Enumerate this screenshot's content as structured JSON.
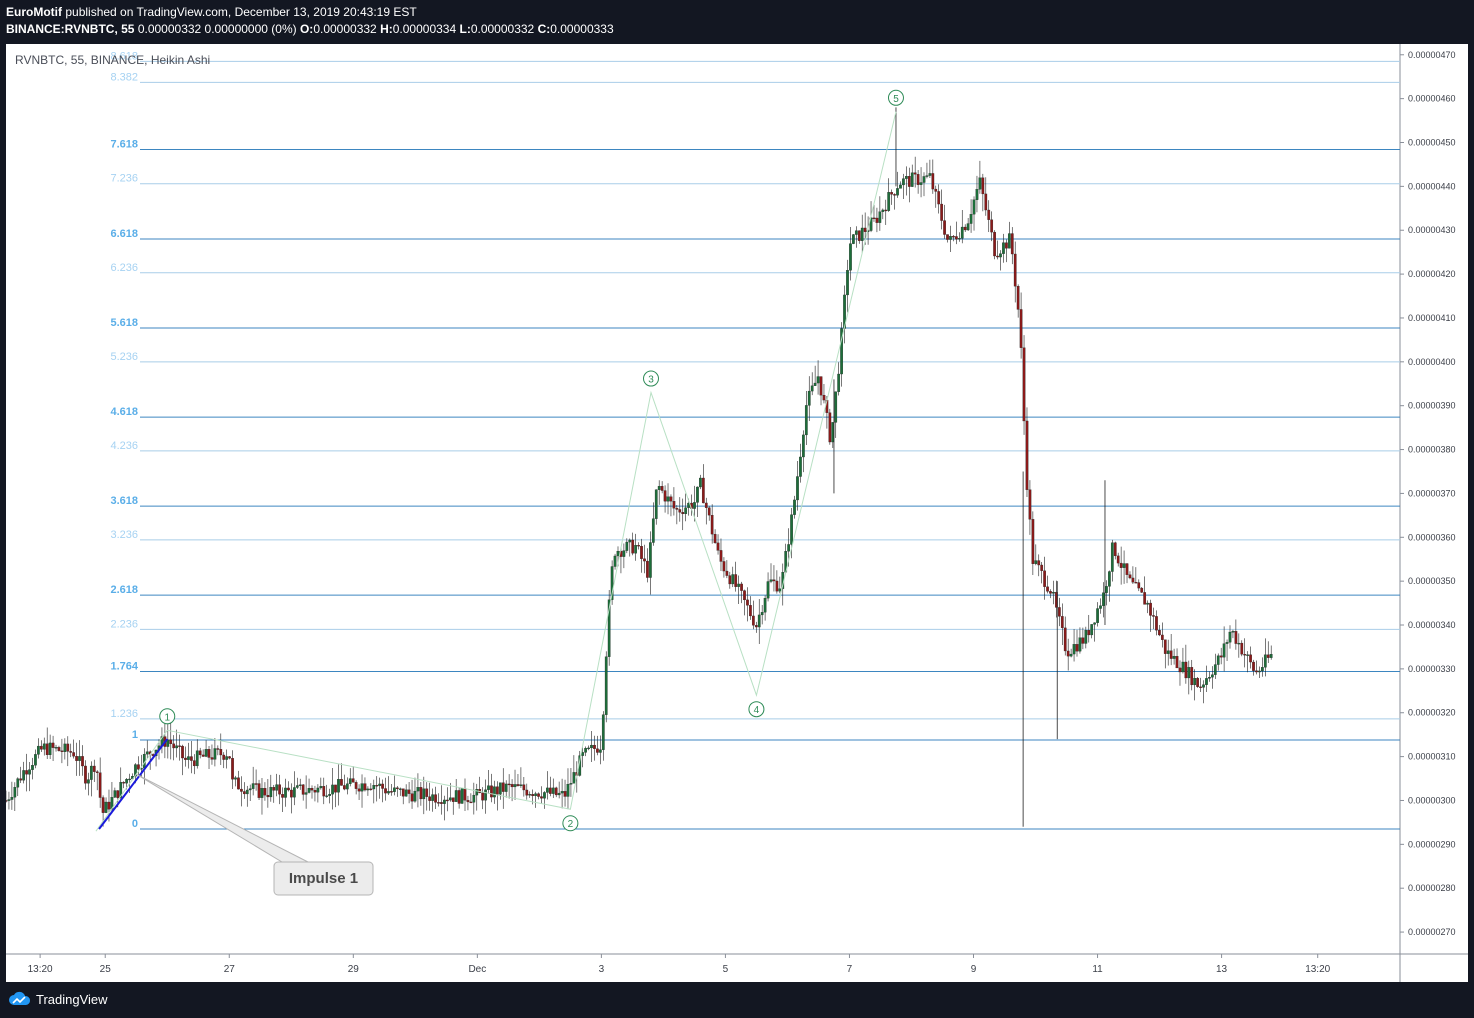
{
  "header": {
    "author": "EuroMotif",
    "published_text": "published on TradingView.com, December 13, 2019 20:43:19 EST",
    "symbol_line": "BINANCE:RVNBTC, 55",
    "change": "0.00000332 0.00000000 (0%)",
    "ohlc": [
      {
        "k": "O:",
        "v": "0.00000332"
      },
      {
        "k": "H:",
        "v": "0.00000334"
      },
      {
        "k": "L:",
        "v": "0.00000332"
      },
      {
        "k": "C:",
        "v": "0.00000333"
      }
    ]
  },
  "footer": {
    "brand": "TradingView",
    "logo_icon": "tradingview-cloud-icon"
  },
  "chart_data": {
    "type": "candlestick",
    "title": "RVNBTC, 55, BINANCE, Heikin Ashi",
    "candle_style": "Heikin Ashi",
    "colors": {
      "up": "#1d6e3a",
      "down": "#8b1a1a",
      "fib_line": "#4a90c8",
      "fib_label": "#5aaee8",
      "wave": "#2e8b57",
      "impulse": "#1a1adb"
    },
    "y_axis": {
      "min": 2.65e-06,
      "max": 4.72e-06,
      "ticks": [
        "0.00000270",
        "0.00000280",
        "0.00000290",
        "0.00000300",
        "0.00000310",
        "0.00000320",
        "0.00000330",
        "0.00000340",
        "0.00000350",
        "0.00000360",
        "0.00000370",
        "0.00000380",
        "0.00000390",
        "0.00000400",
        "0.00000410",
        "0.00000420",
        "0.00000430",
        "0.00000440",
        "0.00000450",
        "0.00000460",
        "0.00000470"
      ]
    },
    "x_axis": {
      "min_day": 23.4,
      "max_day": 44.2,
      "ticks": [
        {
          "label": "13:20",
          "day": 23.95
        },
        {
          "label": "25",
          "day": 25
        },
        {
          "label": "27",
          "day": 27
        },
        {
          "label": "29",
          "day": 29
        },
        {
          "label": "Dec",
          "day": 31
        },
        {
          "label": "3",
          "day": 33
        },
        {
          "label": "5",
          "day": 35
        },
        {
          "label": "7",
          "day": 37
        },
        {
          "label": "9",
          "day": 39
        },
        {
          "label": "11",
          "day": 41
        },
        {
          "label": "13",
          "day": 43
        },
        {
          "label": "13:20",
          "day": 44.55
        }
      ]
    },
    "fib_levels": [
      {
        "label": "0",
        "price": 2.935e-06,
        "major": true
      },
      {
        "label": "1",
        "price": 3.138e-06,
        "major": true
      },
      {
        "label": "1.236",
        "price": 3.186e-06,
        "major": false
      },
      {
        "label": "1.764",
        "price": 3.294e-06,
        "major": true
      },
      {
        "label": "2.236",
        "price": 3.39e-06,
        "major": false
      },
      {
        "label": "2.618",
        "price": 3.468e-06,
        "major": true
      },
      {
        "label": "3.236",
        "price": 3.594e-06,
        "major": false
      },
      {
        "label": "3.618",
        "price": 3.671e-06,
        "major": true
      },
      {
        "label": "4.236",
        "price": 3.797e-06,
        "major": false
      },
      {
        "label": "4.618",
        "price": 3.874e-06,
        "major": true
      },
      {
        "label": "5.236",
        "price": 4e-06,
        "major": false
      },
      {
        "label": "5.618",
        "price": 4.077e-06,
        "major": true
      },
      {
        "label": "6.236",
        "price": 4.203e-06,
        "major": false
      },
      {
        "label": "6.618",
        "price": 4.28e-06,
        "major": true
      },
      {
        "label": "7.236",
        "price": 4.406e-06,
        "major": false
      },
      {
        "label": "7.618",
        "price": 4.484e-06,
        "major": true
      },
      {
        "label": "8.382",
        "price": 4.637e-06,
        "major": false
      },
      {
        "label": "8.618",
        "price": 4.685e-06,
        "major": false
      }
    ],
    "waves": [
      {
        "label": "1",
        "day": 26.0,
        "price": 3.16e-06
      },
      {
        "label": "2",
        "day": 32.5,
        "price": 2.98e-06
      },
      {
        "label": "3",
        "day": 33.8,
        "price": 3.93e-06
      },
      {
        "label": "4",
        "day": 35.5,
        "price": 3.24e-06
      },
      {
        "label": "5",
        "day": 37.75,
        "price": 4.57e-06
      }
    ],
    "wave_start": {
      "day": 24.85,
      "price": 2.93e-06
    },
    "impulse_line": {
      "from": {
        "day": 24.9,
        "price": 2.935e-06
      },
      "to": {
        "day": 26.0,
        "price": 3.14e-06
      }
    },
    "callout": {
      "text": "Impulse 1",
      "anchor": {
        "day": 25.5,
        "price": 3.06e-06
      }
    },
    "price_path": [
      [
        23.4,
        3e-06
      ],
      [
        23.7,
        3.07e-06
      ],
      [
        24.0,
        3.12e-06
      ],
      [
        24.5,
        3.11e-06
      ],
      [
        24.7,
        3.05e-06
      ],
      [
        24.85,
        3.09e-06
      ],
      [
        24.95,
        2.97e-06
      ],
      [
        25.2,
        3.02e-06
      ],
      [
        25.5,
        3.08e-06
      ],
      [
        25.8,
        3.12e-06
      ],
      [
        26.0,
        3.14e-06
      ],
      [
        26.3,
        3.09e-06
      ],
      [
        26.6,
        3.1e-06
      ],
      [
        27.0,
        3.11e-06
      ],
      [
        27.05,
        3.04e-06
      ],
      [
        27.5,
        3.02e-06
      ],
      [
        28.0,
        3.02e-06
      ],
      [
        28.7,
        3.03e-06
      ],
      [
        29.3,
        3.04e-06
      ],
      [
        29.6,
        3.02e-06
      ],
      [
        30.3,
        3.01e-06
      ],
      [
        31.0,
        3.01e-06
      ],
      [
        31.5,
        3.03e-06
      ],
      [
        32.0,
        3.02e-06
      ],
      [
        32.4,
        3.01e-06
      ],
      [
        32.7,
        3.1e-06
      ],
      [
        33.0,
        3.13e-06
      ],
      [
        33.1,
        3.4e-06
      ],
      [
        33.2,
        3.57e-06
      ],
      [
        33.55,
        3.58e-06
      ],
      [
        33.75,
        3.52e-06
      ],
      [
        33.9,
        3.72e-06
      ],
      [
        34.2,
        3.66e-06
      ],
      [
        34.5,
        3.68e-06
      ],
      [
        34.6,
        3.72e-06
      ],
      [
        34.9,
        3.55e-06
      ],
      [
        35.2,
        3.48e-06
      ],
      [
        35.5,
        3.4e-06
      ],
      [
        35.7,
        3.5e-06
      ],
      [
        35.9,
        3.49e-06
      ],
      [
        36.1,
        3.67e-06
      ],
      [
        36.3,
        3.9e-06
      ],
      [
        36.5,
        3.97e-06
      ],
      [
        36.7,
        3.82e-06
      ],
      [
        36.85,
        4.02e-06
      ],
      [
        37.0,
        4.27e-06
      ],
      [
        37.4,
        4.32e-06
      ],
      [
        37.8,
        4.41e-06
      ],
      [
        38.3,
        4.42e-06
      ],
      [
        38.6,
        4.27e-06
      ],
      [
        38.9,
        4.32e-06
      ],
      [
        39.1,
        4.41e-06
      ],
      [
        39.35,
        4.25e-06
      ],
      [
        39.6,
        4.28e-06
      ],
      [
        39.75,
        4.08e-06
      ],
      [
        39.85,
        3.75e-06
      ],
      [
        39.95,
        3.55e-06
      ],
      [
        40.25,
        3.48e-06
      ],
      [
        40.5,
        3.34e-06
      ],
      [
        40.8,
        3.37e-06
      ],
      [
        41.1,
        3.47e-06
      ],
      [
        41.25,
        3.58e-06
      ],
      [
        41.5,
        3.5e-06
      ],
      [
        41.8,
        3.45e-06
      ],
      [
        42.1,
        3.34e-06
      ],
      [
        42.4,
        3.3e-06
      ],
      [
        42.65,
        3.26e-06
      ],
      [
        43.0,
        3.33e-06
      ],
      [
        43.15,
        3.39e-06
      ],
      [
        43.35,
        3.34e-06
      ],
      [
        43.55,
        3.29e-06
      ],
      [
        43.8,
        3.33e-06
      ]
    ],
    "wicks": [
      {
        "day": 39.8,
        "low": 2.94e-06,
        "high": 3.75e-06
      },
      {
        "day": 40.35,
        "low": 3.14e-06,
        "high": 3.5e-06
      },
      {
        "day": 36.75,
        "low": 3.7e-06,
        "high": 3.96e-06
      },
      {
        "day": 41.12,
        "low": 3.4e-06,
        "high": 3.73e-06
      },
      {
        "day": 37.75,
        "low": 4.4e-06,
        "high": 4.58e-06
      }
    ]
  }
}
